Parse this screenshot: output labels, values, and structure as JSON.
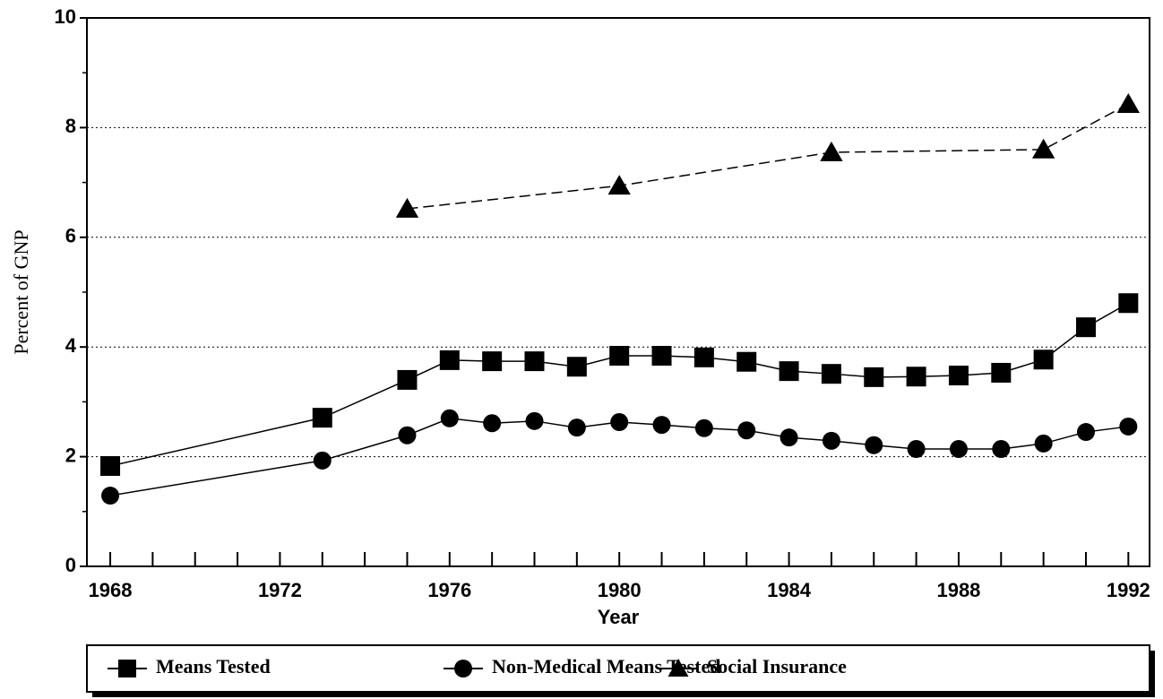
{
  "chart_data": {
    "type": "line",
    "xlabel": "Year",
    "ylabel": "Percent of GNP",
    "x": [
      1968,
      1973,
      1975,
      1976,
      1977,
      1978,
      1979,
      1980,
      1981,
      1982,
      1983,
      1984,
      1985,
      1986,
      1987,
      1988,
      1989,
      1990,
      1991,
      1992
    ],
    "series": [
      {
        "name": "Means Tested",
        "color": "#000000",
        "marker": "square",
        "dashed": false,
        "values": [
          1.83,
          2.71,
          3.4,
          3.76,
          3.74,
          3.74,
          3.64,
          3.84,
          3.84,
          3.81,
          3.73,
          3.56,
          3.51,
          3.45,
          3.46,
          3.48,
          3.53,
          3.77,
          4.36,
          4.8
        ]
      },
      {
        "name": "Non-Medical Means Tested",
        "color": "#000000",
        "marker": "circle",
        "dashed": false,
        "values": [
          1.29,
          1.93,
          2.39,
          2.7,
          2.61,
          2.65,
          2.53,
          2.63,
          2.58,
          2.52,
          2.48,
          2.35,
          2.29,
          2.21,
          2.14,
          2.14,
          2.14,
          2.24,
          2.45,
          2.55
        ]
      },
      {
        "name": "Social Insurance",
        "color": "#000000",
        "marker": "triangle",
        "dashed": true,
        "x": [
          1975,
          1980,
          1985,
          1990,
          1992
        ],
        "values": [
          6.52,
          6.94,
          7.55,
          7.6,
          8.43
        ]
      }
    ],
    "xlim": [
      1967.45,
      1992.5
    ],
    "xticks": [
      1968,
      1972,
      1976,
      1980,
      1984,
      1988,
      1992
    ],
    "xminorticks": [
      1969,
      1970,
      1971,
      1973,
      1974,
      1975,
      1977,
      1978,
      1979,
      1981,
      1982,
      1983,
      1985,
      1986,
      1987,
      1989,
      1990,
      1991
    ],
    "ylim": [
      0,
      10
    ],
    "yticks": [
      0,
      2,
      4,
      6,
      8,
      10
    ],
    "yminorticks": [
      1,
      3,
      5,
      7,
      9
    ],
    "grid": true,
    "legend": "bottom"
  }
}
